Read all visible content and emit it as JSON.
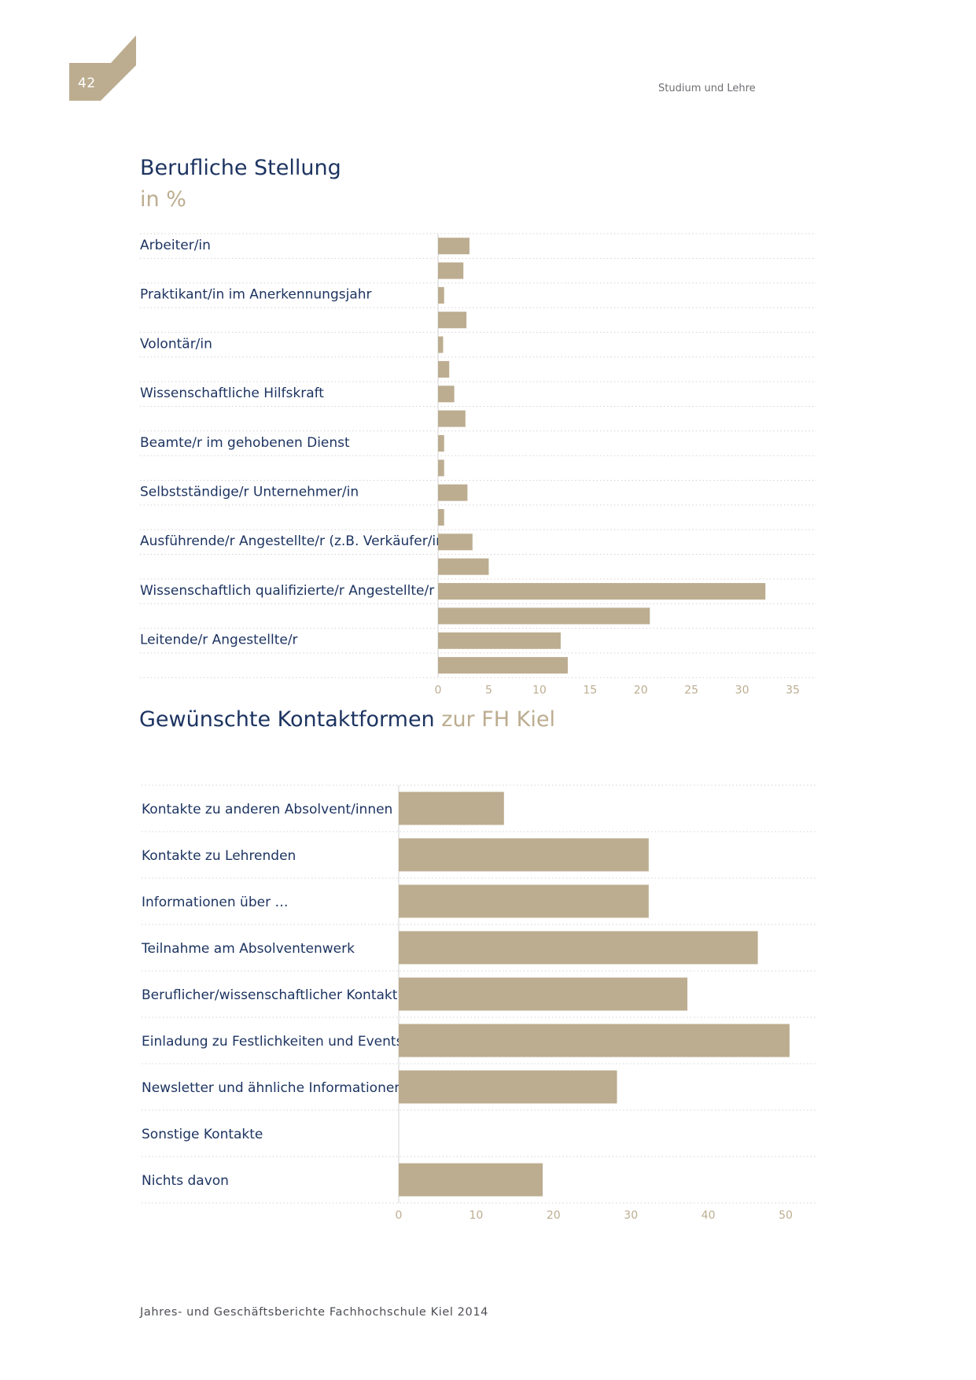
{
  "page": {
    "number": "42",
    "running_header": "Studium und Lehre",
    "footer": "Jahres- und Geschäftsberichte Fachhochschule Kiel 2014"
  },
  "colors": {
    "bar": "#bcad90",
    "text_dark": "#1d3461",
    "accent": "#bcad90",
    "tick": "#bcad90",
    "grid": "#d3d3d3"
  },
  "section1": {
    "title": "Berufliche Stellung",
    "subtitle": "in %"
  },
  "section2": {
    "title": "Gewünschte Kontaktformen",
    "title_accent": "zur FH Kiel"
  },
  "chart_data": [
    {
      "type": "bar",
      "orientation": "horizontal",
      "title": "Berufliche Stellung",
      "subtitle": "in %",
      "categories": [
        "Arbeiter/in",
        "Praktikant/in im Anerkennungsjahr",
        "Volontär/in",
        "Wissenschaftliche Hilfskraft",
        "Beamte/r im gehobenen Dienst",
        "Selbstständige/r Unternehmer/in",
        "Ausführende/r Angestellte/r (z.B. Verkäufer/in)",
        "Wissenschaftlich qualifizierte/r Angestellte/r",
        "Leitende/r Angestellte/r"
      ],
      "series": [
        {
          "values": [
            3.1,
            0.6,
            0.5,
            1.6,
            0.6,
            2.9,
            3.4,
            32.3,
            12.1
          ]
        },
        {
          "values": [
            2.5,
            2.8,
            1.1,
            2.7,
            0.6,
            0.6,
            5.0,
            20.9,
            12.8
          ]
        }
      ],
      "xlim": [
        0,
        35
      ],
      "xticks": [
        0,
        5,
        10,
        15,
        20,
        25,
        30,
        35
      ],
      "grid": "dotted horizontal"
    },
    {
      "type": "bar",
      "orientation": "horizontal",
      "title": "Gewünschte Kontaktformen zur FH Kiel",
      "categories": [
        "Kontakte zu anderen Absolvent/innen",
        "Kontakte zu Lehrenden",
        "Informationen über …",
        "Teilnahme am Absolventenwerk",
        "Beruflicher/wissenschaftlicher Kontakt",
        "Einladung zu Festlichkeiten und Events",
        "Newsletter und ähnliche Informationen",
        "Sonstige Kontakte",
        "Nichts davon"
      ],
      "values": [
        13.6,
        32.3,
        32.3,
        46.4,
        37.3,
        50.5,
        28.2,
        0,
        18.6
      ],
      "xlim": [
        0,
        50
      ],
      "xticks": [
        0,
        10,
        20,
        30,
        40,
        50
      ],
      "grid": "dotted horizontal"
    }
  ]
}
